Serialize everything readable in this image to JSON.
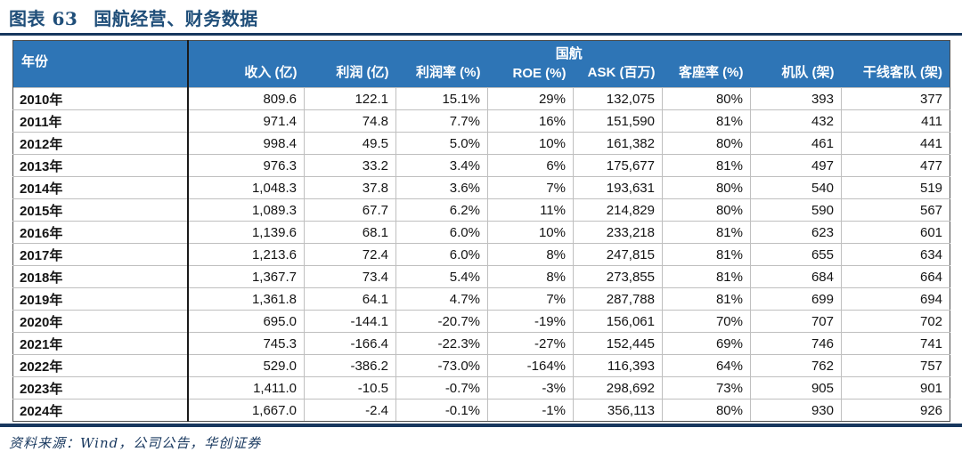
{
  "figure": {
    "prefix": "图表 63",
    "title": "国航经营、财务数据"
  },
  "table": {
    "year_header": "年份",
    "group_header": "国航",
    "columns": [
      "收入 (亿)",
      "利润 (亿)",
      "利润率 (%)",
      "ROE (%)",
      "ASK (百万)",
      "客座率 (%)",
      "机队 (架)",
      "干线客队 (架)"
    ],
    "rows": [
      {
        "year": "2010年",
        "values": [
          "809.6",
          "122.1",
          "15.1%",
          "29%",
          "132,075",
          "80%",
          "393",
          "377"
        ]
      },
      {
        "year": "2011年",
        "values": [
          "971.4",
          "74.8",
          "7.7%",
          "16%",
          "151,590",
          "81%",
          "432",
          "411"
        ]
      },
      {
        "year": "2012年",
        "values": [
          "998.4",
          "49.5",
          "5.0%",
          "10%",
          "161,382",
          "80%",
          "461",
          "441"
        ]
      },
      {
        "year": "2013年",
        "values": [
          "976.3",
          "33.2",
          "3.4%",
          "6%",
          "175,677",
          "81%",
          "497",
          "477"
        ]
      },
      {
        "year": "2014年",
        "values": [
          "1,048.3",
          "37.8",
          "3.6%",
          "7%",
          "193,631",
          "80%",
          "540",
          "519"
        ]
      },
      {
        "year": "2015年",
        "values": [
          "1,089.3",
          "67.7",
          "6.2%",
          "11%",
          "214,829",
          "80%",
          "590",
          "567"
        ]
      },
      {
        "year": "2016年",
        "values": [
          "1,139.6",
          "68.1",
          "6.0%",
          "10%",
          "233,218",
          "81%",
          "623",
          "601"
        ]
      },
      {
        "year": "2017年",
        "values": [
          "1,213.6",
          "72.4",
          "6.0%",
          "8%",
          "247,815",
          "81%",
          "655",
          "634"
        ]
      },
      {
        "year": "2018年",
        "values": [
          "1,367.7",
          "73.4",
          "5.4%",
          "8%",
          "273,855",
          "81%",
          "684",
          "664"
        ]
      },
      {
        "year": "2019年",
        "values": [
          "1,361.8",
          "64.1",
          "4.7%",
          "7%",
          "287,788",
          "81%",
          "699",
          "694"
        ]
      },
      {
        "year": "2020年",
        "values": [
          "695.0",
          "-144.1",
          "-20.7%",
          "-19%",
          "156,061",
          "70%",
          "707",
          "702"
        ]
      },
      {
        "year": "2021年",
        "values": [
          "745.3",
          "-166.4",
          "-22.3%",
          "-27%",
          "152,445",
          "69%",
          "746",
          "741"
        ]
      },
      {
        "year": "2022年",
        "values": [
          "529.0",
          "-386.2",
          "-73.0%",
          "-164%",
          "116,393",
          "64%",
          "762",
          "757"
        ]
      },
      {
        "year": "2023年",
        "values": [
          "1,411.0",
          "-10.5",
          "-0.7%",
          "-3%",
          "298,692",
          "73%",
          "905",
          "901"
        ]
      },
      {
        "year": "2024年",
        "values": [
          "1,667.0",
          "-2.4",
          "-0.1%",
          "-1%",
          "356,113",
          "80%",
          "930",
          "926"
        ]
      }
    ]
  },
  "source": "资料来源：Wind，公司公告，华创证券",
  "colors": {
    "header_bg": "#2E75B6",
    "title_text": "#1F4E79",
    "rule": "#17375E",
    "source_text": "#17375E"
  }
}
